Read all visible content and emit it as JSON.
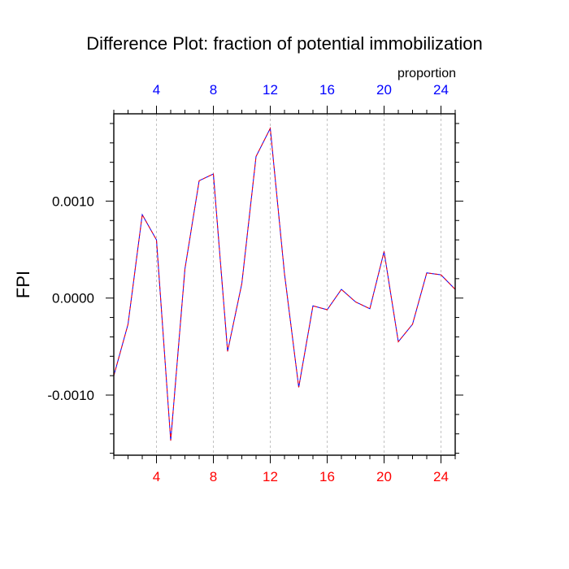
{
  "colors": {
    "background": "#ffffff",
    "axis": "#000000",
    "grid": "#b3b3b3",
    "series_line": "#0000ff",
    "series_dash": "#ff0000",
    "top_tick_labels": "#0000ff",
    "bottom_tick_labels": "#ff0000",
    "text": "#000000"
  },
  "chart_data": {
    "type": "line",
    "title": "Difference Plot: fraction of potential immobilization",
    "ylabel": "FPI",
    "top_axis_label": "proportion",
    "xlim": [
      1,
      25
    ],
    "ylim": [
      -0.00162,
      0.0019
    ],
    "x_ticks": [
      4,
      8,
      12,
      16,
      20,
      24
    ],
    "x_tick_labels": [
      "4",
      "8",
      "12",
      "16",
      "20",
      "24"
    ],
    "y_ticks": [
      -0.001,
      0,
      0.001
    ],
    "y_tick_labels": [
      "-0.0010",
      "0.0000",
      "0.0010"
    ],
    "grid": "vertical dashed at x ticks",
    "series": [
      {
        "x": [
          1,
          2,
          3,
          4,
          5,
          6,
          7,
          8,
          9,
          10,
          11,
          12,
          13,
          14,
          15,
          16,
          17,
          18,
          19,
          20,
          21,
          22,
          23,
          24,
          25
        ],
        "values": [
          -0.0008,
          -0.00027,
          0.00086,
          0.0006,
          -0.00147,
          0.0003,
          0.00121,
          0.00128,
          -0.00055,
          0.00015,
          0.00146,
          0.00175,
          0.00025,
          -0.00092,
          -8e-05,
          -0.00012,
          9e-05,
          -4e-05,
          -0.00011,
          0.00048,
          -0.00045,
          -0.00027,
          0.00026,
          0.00024,
          9e-05
        ]
      }
    ]
  }
}
